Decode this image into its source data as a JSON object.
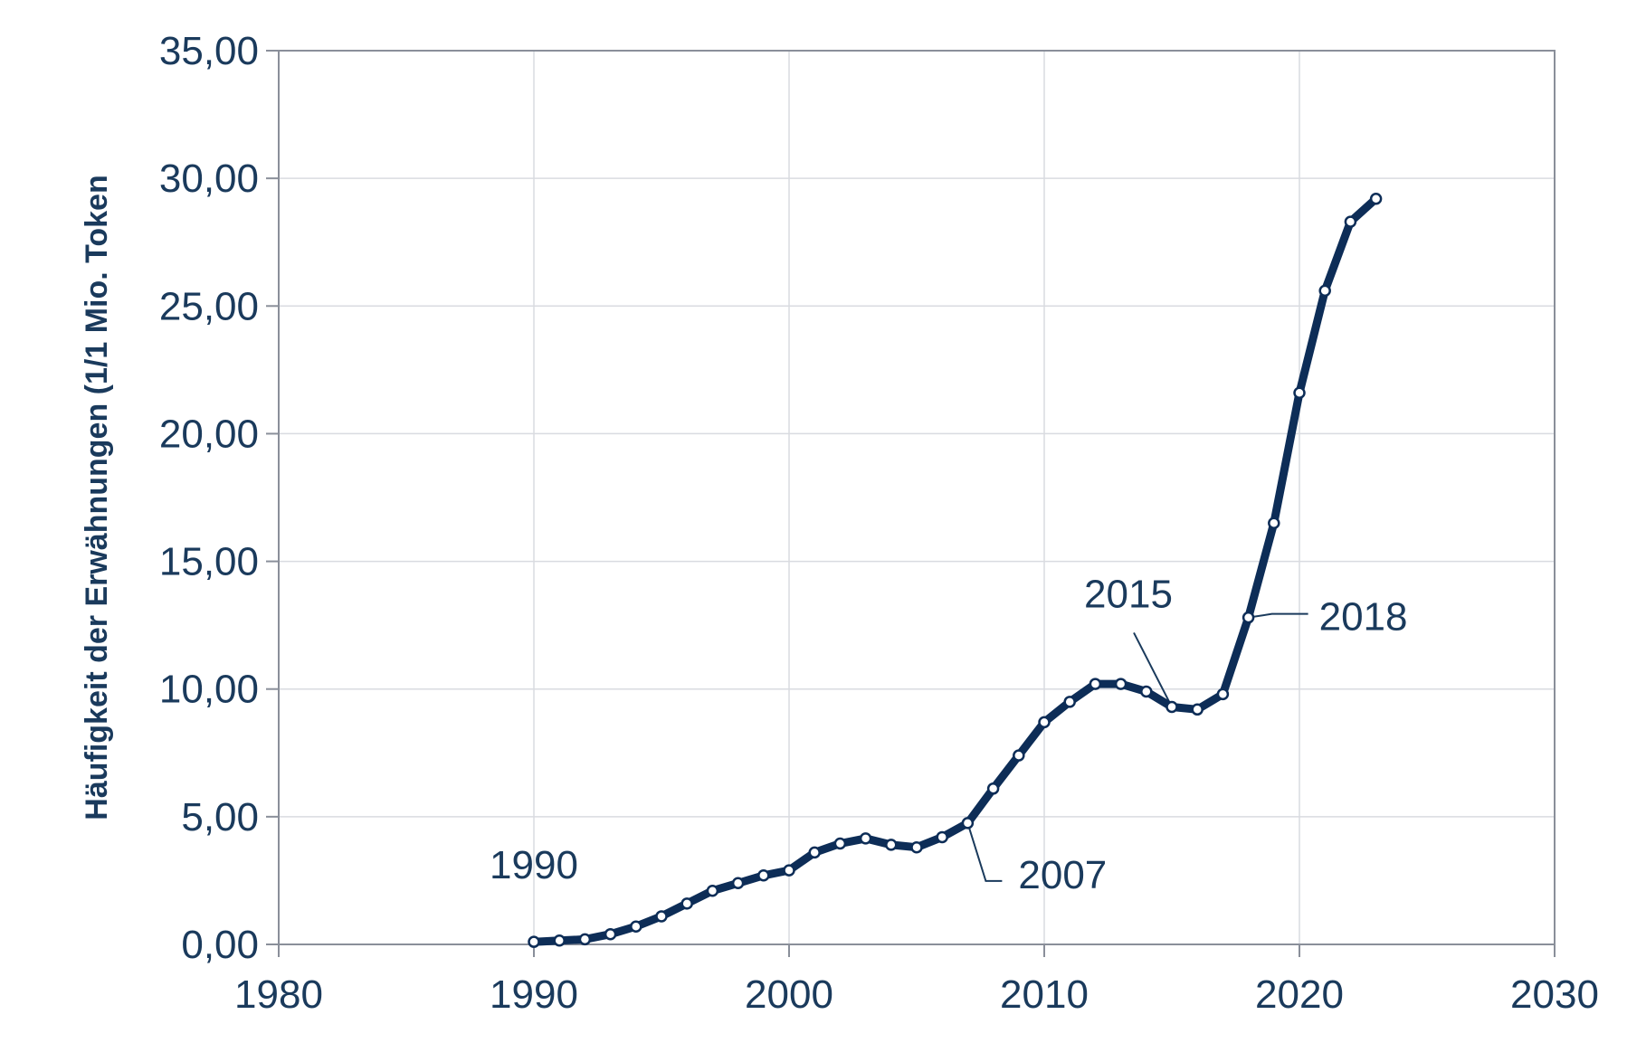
{
  "chart_data": {
    "type": "line",
    "title": "",
    "xlabel": "",
    "ylabel": "Häufigkeit der Erwähnungen (1/1 Mio. Token",
    "xlim": [
      1980,
      2030
    ],
    "ylim": [
      0,
      35
    ],
    "x_ticks": [
      1980,
      1990,
      2000,
      2010,
      2020,
      2030
    ],
    "y_ticks": [
      0,
      5,
      10,
      15,
      20,
      25,
      30,
      35
    ],
    "x_tick_labels": [
      "1980",
      "1990",
      "2000",
      "2010",
      "2020",
      "2030"
    ],
    "y_tick_labels": [
      "0,00",
      "5,00",
      "10,00",
      "15,00",
      "20,00",
      "25,00",
      "30,00",
      "35,00"
    ],
    "grid": true,
    "series": [
      {
        "x": [
          1990,
          1991,
          1992,
          1993,
          1994,
          1995,
          1996,
          1997,
          1998,
          1999,
          2000,
          2001,
          2002,
          2003,
          2004,
          2005,
          2006,
          2007,
          2008,
          2009,
          2010,
          2011,
          2012,
          2013,
          2014,
          2015,
          2016,
          2017,
          2018,
          2019,
          2020,
          2021,
          2022,
          2023
        ],
        "y": [
          0.1,
          0.15,
          0.2,
          0.4,
          0.7,
          1.1,
          1.6,
          2.1,
          2.4,
          2.7,
          2.9,
          3.6,
          3.95,
          4.15,
          3.9,
          3.8,
          4.2,
          4.75,
          6.1,
          7.4,
          8.7,
          9.5,
          10.2,
          10.2,
          9.9,
          9.3,
          9.2,
          9.8,
          12.8,
          16.5,
          21.6,
          25.6,
          28.3,
          29.2
        ],
        "color": "#0d2d57"
      }
    ],
    "annotations": [
      {
        "text": "1990",
        "x": 1990,
        "y": 0.1
      },
      {
        "text": "2007",
        "x": 2007,
        "y": 4.75
      },
      {
        "text": "2015",
        "x": 2015,
        "y": 9.3
      },
      {
        "text": "2018",
        "x": 2018,
        "y": 12.8
      }
    ]
  }
}
